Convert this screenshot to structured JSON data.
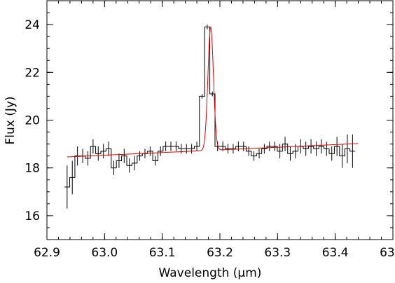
{
  "chart_data": {
    "type": "line",
    "xlabel": "Wavelength (μm)",
    "ylabel": "Flux (Jy)",
    "xlim": [
      62.9,
      63.5
    ],
    "ylim": [
      15.0,
      25.0
    ],
    "xticks": [
      62.9,
      63.0,
      63.1,
      63.2,
      63.3,
      63.4,
      63.5
    ],
    "xtick_labels": [
      "62.9",
      "63.0",
      "63.1",
      "63.2",
      "63.3",
      "63.4",
      "63.5"
    ],
    "yticks": [
      16,
      18,
      20,
      22,
      24
    ],
    "ytick_labels": [
      "16",
      "18",
      "20",
      "22",
      "24"
    ],
    "grid": false,
    "colors": {
      "data": "#000000",
      "model": "#e00000"
    },
    "series": [
      {
        "style": "histogram-with-errorbars",
        "x": [
          62.935,
          62.944,
          62.953,
          62.962,
          62.971,
          62.98,
          62.989,
          62.998,
          63.007,
          63.016,
          63.025,
          63.034,
          63.043,
          63.052,
          63.061,
          63.07,
          63.079,
          63.088,
          63.097,
          63.106,
          63.115,
          63.124,
          63.133,
          63.142,
          63.151,
          63.16,
          63.169,
          63.178,
          63.187,
          63.196,
          63.205,
          63.214,
          63.223,
          63.232,
          63.241,
          63.25,
          63.259,
          63.268,
          63.277,
          63.286,
          63.295,
          63.304,
          63.313,
          63.322,
          63.331,
          63.34,
          63.349,
          63.358,
          63.367,
          63.376,
          63.385,
          63.394,
          63.403,
          63.412,
          63.421,
          63.43
        ],
        "y": [
          17.2,
          17.6,
          18.5,
          18.5,
          18.4,
          18.9,
          18.6,
          18.7,
          18.8,
          18.0,
          18.3,
          18.5,
          18.1,
          18.2,
          18.5,
          18.6,
          18.7,
          18.3,
          18.7,
          18.9,
          18.9,
          18.9,
          18.8,
          18.8,
          18.8,
          18.9,
          21.0,
          23.9,
          21.1,
          18.9,
          18.9,
          18.8,
          18.8,
          18.9,
          18.9,
          18.7,
          18.5,
          18.6,
          18.8,
          18.9,
          18.9,
          18.7,
          19.0,
          18.6,
          18.7,
          18.9,
          18.8,
          18.9,
          18.8,
          18.9,
          18.8,
          18.6,
          18.9,
          18.5,
          18.8,
          18.7
        ],
        "yerr": [
          0.9,
          0.7,
          0.4,
          0.3,
          0.3,
          0.3,
          0.3,
          0.3,
          0.3,
          0.3,
          0.3,
          0.3,
          0.3,
          0.3,
          0.2,
          0.2,
          0.2,
          0.2,
          0.2,
          0.2,
          0.2,
          0.2,
          0.2,
          0.2,
          0.2,
          0.2,
          0.1,
          0.1,
          0.1,
          0.2,
          0.2,
          0.2,
          0.2,
          0.2,
          0.2,
          0.2,
          0.2,
          0.2,
          0.2,
          0.2,
          0.2,
          0.3,
          0.3,
          0.3,
          0.3,
          0.3,
          0.3,
          0.3,
          0.3,
          0.3,
          0.3,
          0.3,
          0.4,
          0.5,
          0.6,
          0.7
        ]
      },
      {
        "style": "smooth-line",
        "continuum": [
          18.46,
          19.02
        ],
        "peak_center": 63.184,
        "peak_height": 5.15,
        "peak_sigma": 0.0048,
        "x_range": [
          62.935,
          63.44
        ]
      }
    ]
  }
}
